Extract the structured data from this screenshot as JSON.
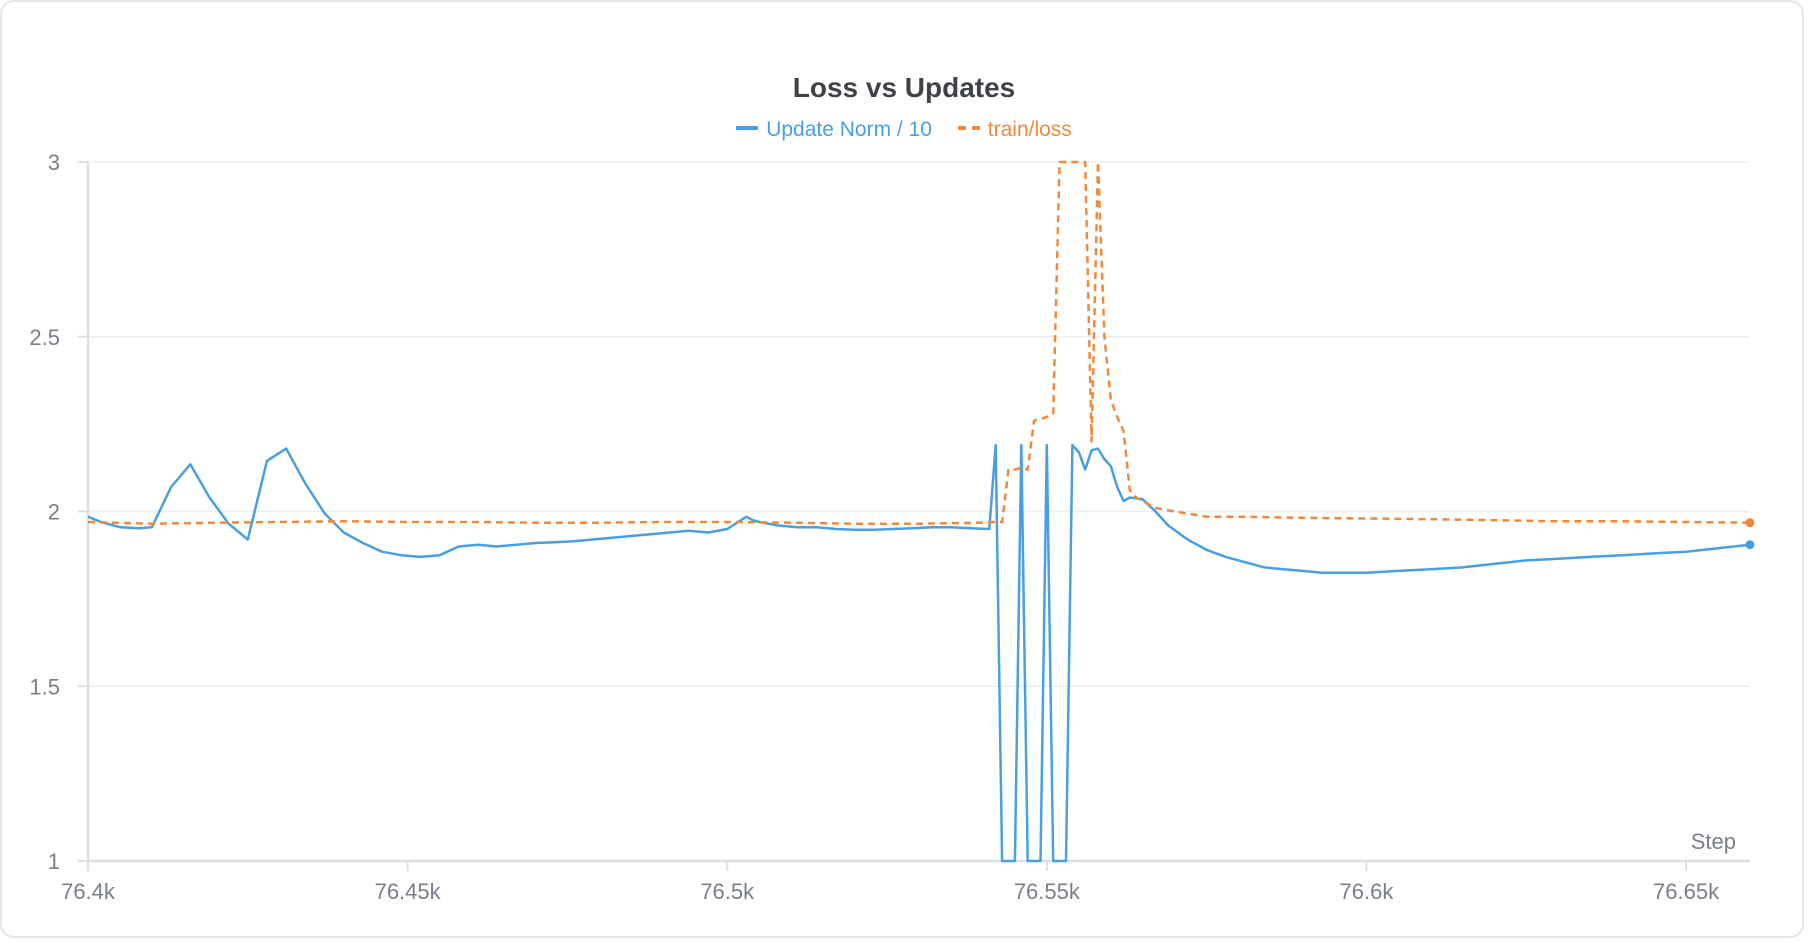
{
  "chart_data": {
    "type": "line",
    "title": "Loss vs Updates",
    "xlabel": "Step",
    "ylabel": "",
    "xlim": [
      76400,
      76660
    ],
    "ylim": [
      1,
      3
    ],
    "grid": true,
    "legend_position": "top-center",
    "x_ticks": [
      {
        "value": 76400,
        "label": "76.4k"
      },
      {
        "value": 76450,
        "label": "76.45k"
      },
      {
        "value": 76500,
        "label": "76.5k"
      },
      {
        "value": 76550,
        "label": "76.55k"
      },
      {
        "value": 76600,
        "label": "76.6k"
      },
      {
        "value": 76650,
        "label": "76.65k"
      }
    ],
    "y_ticks": [
      {
        "value": 1,
        "label": "1"
      },
      {
        "value": 1.5,
        "label": "1.5"
      },
      {
        "value": 2,
        "label": "2"
      },
      {
        "value": 2.5,
        "label": "2.5"
      },
      {
        "value": 3,
        "label": "3"
      }
    ],
    "series": [
      {
        "name": "Update Norm / 10",
        "color": "#4a9fe0",
        "style": "solid",
        "x": [
          76400,
          76402,
          76405,
          76408,
          76410,
          76413,
          76416,
          76419,
          76422,
          76425,
          76428,
          76431,
          76434,
          76437,
          76440,
          76443,
          76446,
          76449,
          76452,
          76455,
          76458,
          76461,
          76464,
          76467,
          76470,
          76473,
          76476,
          76479,
          76482,
          76485,
          76488,
          76491,
          76494,
          76497,
          76500,
          76503,
          76504,
          76505,
          76508,
          76511,
          76514,
          76517,
          76520,
          76523,
          76526,
          76529,
          76532,
          76535,
          76538,
          76541,
          76542,
          76543,
          76544,
          76545,
          76546,
          76547,
          76548,
          76549,
          76550,
          76551,
          76552,
          76553,
          76554,
          76555,
          76556,
          76557,
          76558,
          76559,
          76560,
          76561,
          76562,
          76563,
          76565,
          76567,
          76569,
          76572,
          76575,
          76578,
          76581,
          76584,
          76587,
          76590,
          76593,
          76596,
          76600,
          76605,
          76610,
          76615,
          76620,
          76625,
          76630,
          76635,
          76640,
          76645,
          76650,
          76655,
          76660
        ],
        "y": [
          1.985,
          1.97,
          1.955,
          1.952,
          1.955,
          2.07,
          2.135,
          2.04,
          1.965,
          1.92,
          2.145,
          2.18,
          2.08,
          1.995,
          1.94,
          1.91,
          1.885,
          1.875,
          1.87,
          1.875,
          1.9,
          1.905,
          1.9,
          1.905,
          1.91,
          1.912,
          1.915,
          1.92,
          1.925,
          1.93,
          1.935,
          1.94,
          1.945,
          1.94,
          1.95,
          1.985,
          1.975,
          1.97,
          1.96,
          1.955,
          1.955,
          1.95,
          1.948,
          1.948,
          1.95,
          1.952,
          1.955,
          1.955,
          1.952,
          1.95,
          2.19,
          1.0,
          1.0,
          1.0,
          2.19,
          1.0,
          1.0,
          1.0,
          2.19,
          1.0,
          1.0,
          1.0,
          2.19,
          2.17,
          2.12,
          2.175,
          2.18,
          2.15,
          2.13,
          2.07,
          2.03,
          2.04,
          2.035,
          2.0,
          1.96,
          1.92,
          1.89,
          1.87,
          1.855,
          1.84,
          1.835,
          1.83,
          1.825,
          1.825,
          1.825,
          1.83,
          1.835,
          1.84,
          1.85,
          1.86,
          1.865,
          1.87,
          1.875,
          1.88,
          1.885,
          1.895,
          1.905
        ]
      },
      {
        "name": "train/loss",
        "color": "#ef8a3c",
        "style": "dashed",
        "x": [
          76400,
          76410,
          76420,
          76430,
          76440,
          76450,
          76460,
          76470,
          76480,
          76490,
          76500,
          76510,
          76520,
          76530,
          76540,
          76542,
          76543,
          76544,
          76545,
          76546,
          76547,
          76548,
          76549,
          76550,
          76551,
          76552,
          76553,
          76554,
          76555,
          76556,
          76557,
          76558,
          76559,
          76560,
          76561,
          76562,
          76563,
          76564,
          76565,
          76567,
          76570,
          76575,
          76580,
          76590,
          76600,
          76610,
          76620,
          76630,
          76640,
          76650,
          76660
        ],
        "y": [
          1.97,
          1.965,
          1.968,
          1.97,
          1.972,
          1.97,
          1.97,
          1.968,
          1.968,
          1.97,
          1.97,
          1.968,
          1.965,
          1.965,
          1.968,
          1.97,
          1.97,
          2.12,
          2.12,
          2.125,
          2.12,
          2.26,
          2.265,
          2.27,
          2.28,
          3.0,
          3.0,
          3.0,
          3.0,
          3.0,
          2.2,
          3.0,
          2.5,
          2.32,
          2.27,
          2.23,
          2.06,
          2.04,
          2.03,
          2.01,
          2.0,
          1.985,
          1.985,
          1.982,
          1.98,
          1.978,
          1.975,
          1.972,
          1.972,
          1.97,
          1.968
        ]
      }
    ]
  }
}
